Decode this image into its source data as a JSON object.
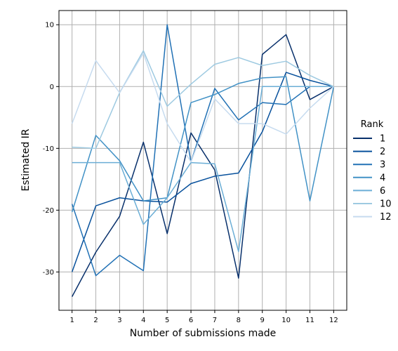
{
  "chart_data": {
    "type": "line",
    "xlabel": "Number of submissions made",
    "ylabel": "Estimated IR",
    "x": [
      1,
      2,
      3,
      4,
      5,
      6,
      7,
      8,
      9,
      10,
      11,
      12
    ],
    "xlim": [
      0.45,
      12.55
    ],
    "ylim": [
      -36.2,
      12.3
    ],
    "yticks": [
      10,
      0,
      -10,
      -20,
      -30
    ],
    "grid": true,
    "legend": {
      "title": "Rank",
      "placement": "right-outside"
    },
    "series": [
      {
        "name": "1",
        "color": "#08306b",
        "values": [
          -34.0,
          -26.8,
          -21.0,
          -9.0,
          -23.8,
          -7.5,
          -13.5,
          -31.0,
          5.2,
          8.4,
          -2.1,
          0.0
        ]
      },
      {
        "name": "2",
        "color": "#08519c",
        "values": [
          -30.0,
          -19.3,
          -18.0,
          -18.5,
          -18.7,
          -15.7,
          -14.5,
          -14.0,
          -7.3,
          2.3,
          1.0,
          0.0
        ]
      },
      {
        "name": "3",
        "color": "#2171b5",
        "values": [
          -19.0,
          -30.6,
          -27.3,
          -29.8,
          10.0,
          -12.2,
          -0.3,
          -5.4,
          -2.6,
          -2.9,
          0.0,
          0.0
        ]
      },
      {
        "name": "4",
        "color": "#4292c6",
        "values": [
          -20.3,
          -7.9,
          -12.0,
          -18.5,
          -18.0,
          -2.6,
          -1.3,
          0.5,
          1.4,
          1.6,
          -18.5,
          0.0
        ]
      },
      {
        "name": "6",
        "color": "#6baed6",
        "values": [
          -12.3,
          -12.3,
          -12.3,
          -22.3,
          -18.0,
          -12.3,
          -12.5,
          -26.7,
          0.0,
          0.0,
          0.0,
          0.0
        ]
      },
      {
        "name": "10",
        "color": "#9ecae1",
        "values": [
          -9.8,
          -10.0,
          -1.0,
          5.8,
          -3.2,
          0.4,
          3.6,
          4.7,
          3.4,
          4.1,
          1.8,
          0.0
        ]
      },
      {
        "name": "12",
        "color": "#c6dbef",
        "values": [
          -6.0,
          4.2,
          -1.0,
          5.4,
          -6.0,
          -12.2,
          -2.0,
          -6.0,
          -6.0,
          -7.7,
          -3.5,
          0.0
        ]
      }
    ]
  }
}
